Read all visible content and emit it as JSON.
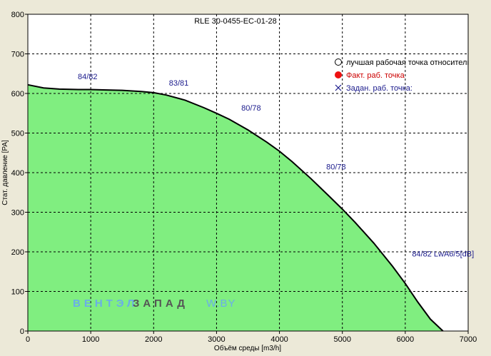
{
  "chart_data": {
    "type": "area",
    "title": "RLE 30-0455-EC-01-28",
    "xlabel": "Объём среды [m3/h]",
    "ylabel": "Стат. давление [PA]",
    "xlim": [
      0,
      7000
    ],
    "ylim": [
      0,
      800
    ],
    "x_ticks": [
      "0",
      "1000",
      "2000",
      "3000",
      "4000",
      "5000",
      "6000",
      "7000"
    ],
    "y_ticks": [
      "0",
      "100",
      "200",
      "300",
      "400",
      "500",
      "600",
      "700",
      "800"
    ],
    "grid": true,
    "fill_color": "#80ee80",
    "curve_color": "#000000",
    "series": [
      {
        "x": [
          0,
          250,
          500,
          800,
          1000,
          1200,
          1500,
          1800,
          2000,
          2200,
          2500,
          2800,
          3000,
          3200,
          3500,
          3800,
          4000,
          4200,
          4500,
          4800,
          5000,
          5200,
          5500,
          5800,
          6000,
          6200,
          6400,
          6600
        ],
        "values": [
          622,
          614,
          611,
          610,
          610,
          609,
          608,
          605,
          602,
          596,
          583,
          564,
          550,
          535,
          508,
          477,
          454,
          428,
          385,
          339,
          308,
          275,
          222,
          163,
          120,
          73,
          30,
          0
        ]
      }
    ],
    "annotations": [
      {
        "text": "84/82",
        "x": 950,
        "y": 636
      },
      {
        "text": "83/81",
        "x": 2400,
        "y": 620
      },
      {
        "text": "80/78",
        "x": 3550,
        "y": 557
      },
      {
        "text": "80/78",
        "x": 4900,
        "y": 408
      },
      {
        "text": "84/82 LwA6/5[dB]",
        "x": 6600,
        "y": 188
      }
    ],
    "legend": {
      "position": "top-right",
      "items": [
        {
          "label": "лучшая рабочая точка относительно кпд",
          "marker": "circle-open",
          "color": "#000000",
          "text_color": "#000000"
        },
        {
          "label": "Факт.  раб. точка",
          "marker": "circle-filled",
          "color": "#ee1111",
          "text_color": "#cc0000"
        },
        {
          "label": "Задан. раб. точка:",
          "marker": "cross",
          "color": "#1a1a8c",
          "text_color": "#1a1a8c"
        }
      ]
    },
    "watermark": {
      "part1": "ВЕНТЭЛ",
      "part2": "ЗАПАД",
      "part3": "W.BY",
      "color1": "#6aaee8",
      "color2": "#555555"
    }
  }
}
